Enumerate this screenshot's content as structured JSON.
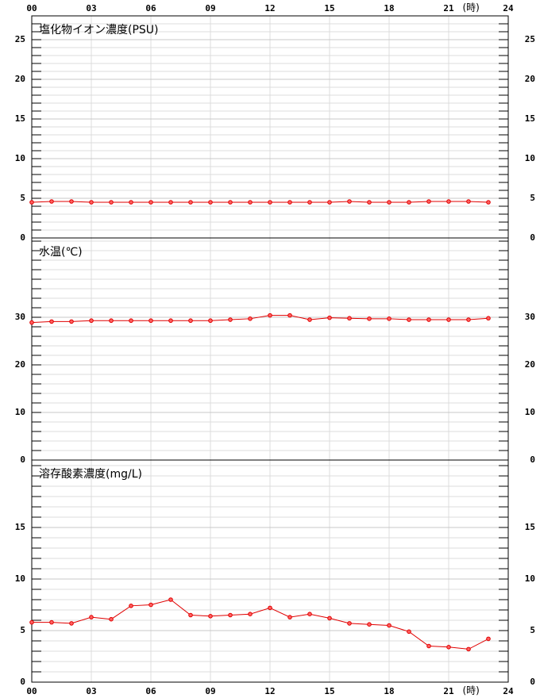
{
  "chart_data": [
    {
      "type": "line",
      "title": "塩化物イオン濃度(PSU)",
      "xlabel": "(時)",
      "x": [
        0,
        1,
        2,
        3,
        4,
        5,
        6,
        7,
        8,
        9,
        10,
        11,
        12,
        13,
        14,
        15,
        16,
        17,
        18,
        19,
        20,
        21,
        22,
        23
      ],
      "xlim": [
        0,
        24
      ],
      "xticks": [
        {
          "value": 0,
          "label": "00"
        },
        {
          "value": 3,
          "label": "03"
        },
        {
          "value": 6,
          "label": "06"
        },
        {
          "value": 9,
          "label": "09"
        },
        {
          "value": 12,
          "label": "12"
        },
        {
          "value": 15,
          "label": "15"
        },
        {
          "value": 18,
          "label": "18"
        },
        {
          "value": 21,
          "label": "21"
        },
        24
      ],
      "ylim": [
        0,
        28
      ],
      "yticks": [
        0,
        5,
        10,
        15,
        20,
        25
      ],
      "minor_yticks": [
        1,
        2,
        3,
        4,
        6,
        7,
        8,
        9,
        11,
        12,
        13,
        14,
        16,
        17,
        18,
        19,
        21,
        22,
        23,
        24,
        26,
        27
      ],
      "grid": true,
      "series": [
        {
          "color": "#e00000",
          "values": [
            4.5,
            4.6,
            4.6,
            4.5,
            4.5,
            4.5,
            4.5,
            4.5,
            4.5,
            4.5,
            4.5,
            4.5,
            4.5,
            4.5,
            4.5,
            4.5,
            4.6,
            4.5,
            4.5,
            4.5,
            4.6,
            4.6,
            4.6,
            4.5
          ]
        }
      ]
    },
    {
      "type": "line",
      "title": "水温(℃)",
      "x": [
        0,
        1,
        2,
        3,
        4,
        5,
        6,
        7,
        8,
        9,
        10,
        11,
        12,
        13,
        14,
        15,
        16,
        17,
        18,
        19,
        20,
        21,
        22,
        23
      ],
      "xlim": [
        0,
        24
      ],
      "ylim": [
        0,
        46.67
      ],
      "yticks": [
        0,
        10,
        20,
        30
      ],
      "minor_yticks": [
        2,
        4,
        6,
        8,
        12,
        14,
        16,
        18,
        22,
        24,
        26,
        28,
        32,
        34,
        36,
        38,
        40,
        42,
        44,
        46
      ],
      "grid": true,
      "series": [
        {
          "color": "#e00000",
          "values": [
            28.9,
            29.1,
            29.1,
            29.3,
            29.3,
            29.3,
            29.3,
            29.3,
            29.3,
            29.3,
            29.5,
            29.7,
            30.4,
            30.4,
            29.5,
            29.9,
            29.8,
            29.7,
            29.7,
            29.5,
            29.5,
            29.5,
            29.5,
            29.8
          ]
        }
      ]
    },
    {
      "type": "line",
      "title": "溶存酸素濃度(mg/L)",
      "xlabel": "(時)",
      "x": [
        0,
        1,
        2,
        3,
        4,
        5,
        6,
        7,
        8,
        9,
        10,
        11,
        12,
        13,
        14,
        15,
        16,
        17,
        18,
        19,
        20,
        21,
        22,
        23
      ],
      "xlim": [
        0,
        24
      ],
      "xticks": [
        {
          "value": 0,
          "label": "00"
        },
        {
          "value": 3,
          "label": "03"
        },
        {
          "value": 6,
          "label": "06"
        },
        {
          "value": 9,
          "label": "09"
        },
        {
          "value": 12,
          "label": "12"
        },
        {
          "value": 15,
          "label": "15"
        },
        {
          "value": 18,
          "label": "18"
        },
        {
          "value": 21,
          "label": "21"
        },
        24
      ],
      "ylim": [
        0,
        21.54
      ],
      "yticks": [
        0,
        5,
        10,
        15
      ],
      "minor_yticks": [
        1,
        2,
        3,
        4,
        6,
        7,
        8,
        9,
        11,
        12,
        13,
        14,
        16,
        17,
        18,
        19,
        20,
        21
      ],
      "grid": true,
      "series": [
        {
          "color": "#e00000",
          "values": [
            5.8,
            5.8,
            5.7,
            6.3,
            6.1,
            7.4,
            7.5,
            8.0,
            6.5,
            6.4,
            6.5,
            6.6,
            7.2,
            6.3,
            6.6,
            6.2,
            5.7,
            5.6,
            5.5,
            4.9,
            3.5,
            3.4,
            3.2,
            4.2
          ]
        }
      ]
    }
  ]
}
